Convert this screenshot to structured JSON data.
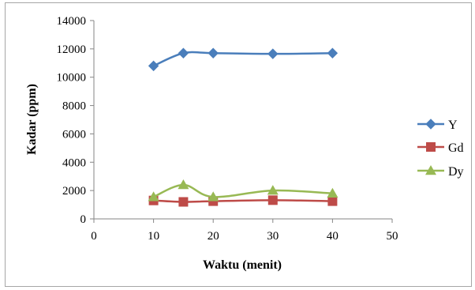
{
  "chart_data": {
    "type": "line",
    "title": "",
    "xlabel": "Waktu (menit)",
    "ylabel": "Kadar (ppm)",
    "xlim": [
      0,
      50
    ],
    "ylim": [
      0,
      14000
    ],
    "x_ticks": [
      0,
      10,
      20,
      30,
      40,
      50
    ],
    "y_ticks": [
      0,
      2000,
      4000,
      6000,
      8000,
      10000,
      12000,
      14000
    ],
    "grid": false,
    "smooth": true,
    "legend_position": "right",
    "x": [
      10,
      15,
      20,
      30,
      40
    ],
    "series": [
      {
        "name": "Y",
        "values": [
          10800,
          11700,
          11700,
          11650,
          11700
        ],
        "color": "#4a7ebb",
        "marker": "diamond"
      },
      {
        "name": "Gd",
        "values": [
          1300,
          1200,
          1250,
          1320,
          1250
        ],
        "color": "#be4b48",
        "marker": "square"
      },
      {
        "name": "Dy",
        "values": [
          1550,
          2400,
          1550,
          2000,
          1800
        ],
        "color": "#98b954",
        "marker": "triangle"
      }
    ]
  }
}
